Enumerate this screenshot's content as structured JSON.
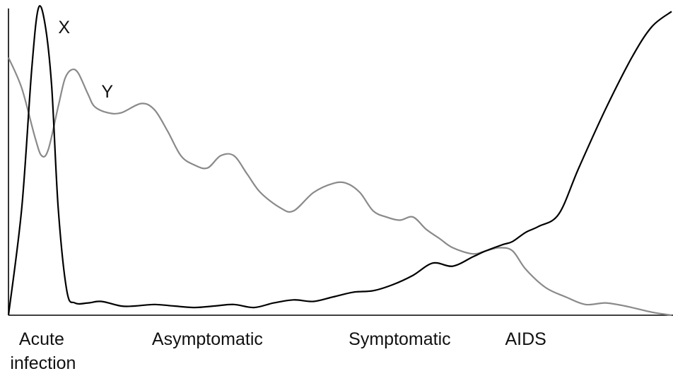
{
  "chart_data": {
    "type": "line",
    "title": "",
    "xlabel": "",
    "ylabel": "",
    "xlim": [
      0,
      100
    ],
    "ylim": [
      0,
      100
    ],
    "grid": false,
    "legend": "none",
    "categories": [
      {
        "label": "Acute",
        "label2": "infection",
        "x": 5
      },
      {
        "label": "Asymptomatic",
        "x": 30
      },
      {
        "label": "Symptomatic",
        "x": 59
      },
      {
        "label": "AIDS",
        "x": 78
      }
    ],
    "series": [
      {
        "name": "X",
        "color": "#000000",
        "label_at": [
          7.5,
          94
        ],
        "points": [
          [
            0,
            0
          ],
          [
            2,
            35
          ],
          [
            3.5,
            80
          ],
          [
            4.5,
            100
          ],
          [
            5.5,
            95
          ],
          [
            6.5,
            75
          ],
          [
            7.5,
            35
          ],
          [
            8.8,
            8
          ],
          [
            10,
            4
          ],
          [
            12,
            4
          ],
          [
            14,
            4.5
          ],
          [
            17,
            3
          ],
          [
            19,
            3
          ],
          [
            22,
            3.5
          ],
          [
            25,
            3
          ],
          [
            28,
            2.5
          ],
          [
            31,
            3
          ],
          [
            34,
            3.5
          ],
          [
            37,
            2.5
          ],
          [
            40,
            4
          ],
          [
            43,
            5
          ],
          [
            46,
            4.5
          ],
          [
            49,
            6
          ],
          [
            52,
            7.5
          ],
          [
            55,
            8
          ],
          [
            58,
            10
          ],
          [
            61,
            13
          ],
          [
            64,
            17
          ],
          [
            67,
            16
          ],
          [
            70,
            19
          ],
          [
            72,
            21
          ],
          [
            74.5,
            23
          ],
          [
            76,
            24
          ],
          [
            78,
            27
          ],
          [
            80,
            29
          ],
          [
            83,
            33
          ],
          [
            86,
            48
          ],
          [
            90,
            67
          ],
          [
            94,
            84
          ],
          [
            97,
            94
          ],
          [
            100,
            99
          ]
        ]
      },
      {
        "name": "Y",
        "color": "#8a8a8a",
        "label_at": [
          14,
          73
        ],
        "points": [
          [
            0,
            84
          ],
          [
            2,
            74
          ],
          [
            4,
            58
          ],
          [
            5,
            52
          ],
          [
            6,
            54
          ],
          [
            7.5,
            68
          ],
          [
            8.5,
            77
          ],
          [
            9.5,
            80
          ],
          [
            10.5,
            79
          ],
          [
            12,
            72
          ],
          [
            13,
            68
          ],
          [
            15,
            66
          ],
          [
            17,
            66
          ],
          [
            20,
            69
          ],
          [
            22,
            67
          ],
          [
            24,
            60
          ],
          [
            26,
            52
          ],
          [
            28,
            49
          ],
          [
            30,
            48
          ],
          [
            32,
            52
          ],
          [
            34,
            52
          ],
          [
            36,
            46
          ],
          [
            38,
            40
          ],
          [
            41,
            35
          ],
          [
            43,
            34
          ],
          [
            46,
            40
          ],
          [
            49,
            43
          ],
          [
            51,
            43
          ],
          [
            53,
            40
          ],
          [
            55,
            34
          ],
          [
            57,
            32
          ],
          [
            59,
            31
          ],
          [
            61,
            32
          ],
          [
            63,
            28
          ],
          [
            65,
            25
          ],
          [
            67,
            22
          ],
          [
            70,
            20
          ],
          [
            72,
            21
          ],
          [
            74,
            22
          ],
          [
            76,
            21
          ],
          [
            78,
            15
          ],
          [
            81,
            9
          ],
          [
            84,
            6
          ],
          [
            87,
            3.5
          ],
          [
            90,
            4
          ],
          [
            93,
            3
          ],
          [
            97,
            1
          ],
          [
            100,
            0
          ]
        ]
      }
    ]
  }
}
